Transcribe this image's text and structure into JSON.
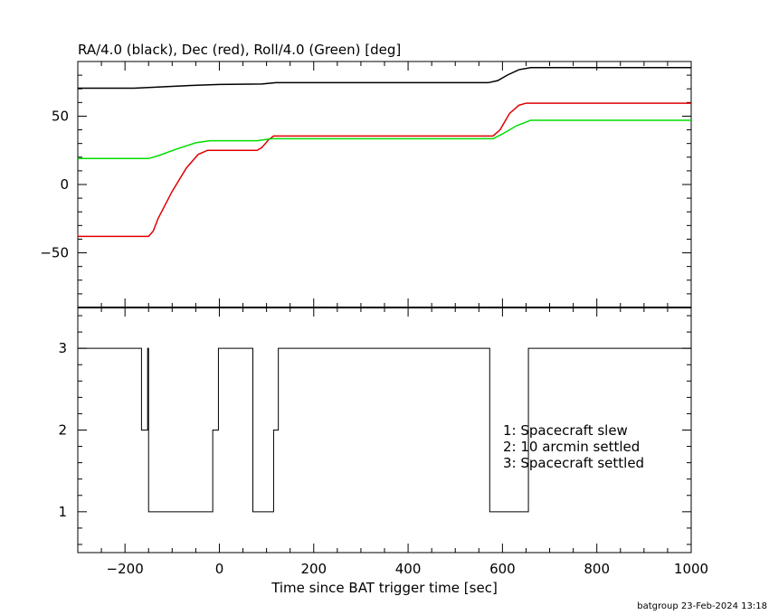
{
  "chart_data": [
    {
      "type": "line",
      "title": "RA/4.0 (black), Dec (red), Roll/4.0 (Green) [deg]",
      "xlim": [
        -300,
        1000
      ],
      "ylim": [
        -90,
        90
      ],
      "yticks": [
        {
          "value": -50,
          "label": "−50"
        },
        {
          "value": 0,
          "label": "0"
        },
        {
          "value": 50,
          "label": "50"
        }
      ],
      "series": [
        {
          "color": "#000000",
          "points": [
            [
              -300,
              70.5
            ],
            [
              -180,
              70.5
            ],
            [
              -120,
              71.5
            ],
            [
              -60,
              72.5
            ],
            [
              0,
              73.2
            ],
            [
              90,
              73.5
            ],
            [
              120,
              74.5
            ],
            [
              570,
              74.5
            ],
            [
              590,
              76
            ],
            [
              610,
              80
            ],
            [
              635,
              84
            ],
            [
              660,
              85.5
            ],
            [
              1000,
              85.5
            ]
          ]
        },
        {
          "color": "#e00000",
          "points": [
            [
              -300,
              -38
            ],
            [
              -150,
              -38
            ],
            [
              -140,
              -34
            ],
            [
              -130,
              -25
            ],
            [
              -100,
              -5
            ],
            [
              -70,
              12
            ],
            [
              -45,
              22
            ],
            [
              -25,
              25
            ],
            [
              80,
              25
            ],
            [
              90,
              27
            ],
            [
              105,
              33
            ],
            [
              115,
              35.5
            ],
            [
              580,
              35.5
            ],
            [
              595,
              40
            ],
            [
              615,
              52
            ],
            [
              635,
              58
            ],
            [
              650,
              59.5
            ],
            [
              1000,
              59.5
            ]
          ]
        },
        {
          "color": "#00dd00",
          "points": [
            [
              -300,
              19
            ],
            [
              -150,
              19
            ],
            [
              -130,
              21
            ],
            [
              -90,
              26
            ],
            [
              -50,
              30.5
            ],
            [
              -20,
              32
            ],
            [
              80,
              32
            ],
            [
              110,
              33.5
            ],
            [
              580,
              33.5
            ],
            [
              600,
              37
            ],
            [
              630,
              43
            ],
            [
              660,
              47
            ],
            [
              1000,
              47
            ]
          ]
        }
      ]
    },
    {
      "type": "line",
      "xlabel": "Time since BAT trigger time [sec]",
      "xlim": [
        -300,
        1000
      ],
      "ylim": [
        0.5,
        3.5
      ],
      "xticks": [
        {
          "value": -200,
          "label": "−200"
        },
        {
          "value": 0,
          "label": "0"
        },
        {
          "value": 200,
          "label": "200"
        },
        {
          "value": 400,
          "label": "400"
        },
        {
          "value": 600,
          "label": "600"
        },
        {
          "value": 800,
          "label": "800"
        },
        {
          "value": 1000,
          "label": "1000"
        }
      ],
      "yticks": [
        {
          "value": 1,
          "label": "1"
        },
        {
          "value": 2,
          "label": "2"
        },
        {
          "value": 3,
          "label": "3"
        }
      ],
      "annotations": [
        "1: Spacecraft slew",
        "2: 10 arcmin settled",
        "3: Spacecraft settled"
      ],
      "series": [
        {
          "color": "#000000",
          "step_points": [
            [
              -300,
              3
            ],
            [
              -165,
              3
            ],
            [
              -165,
              2
            ],
            [
              -152,
              2
            ],
            [
              -152,
              3
            ],
            [
              -150,
              3
            ],
            [
              -150,
              1
            ],
            [
              -14,
              1
            ],
            [
              -14,
              2
            ],
            [
              -2,
              2
            ],
            [
              -2,
              3
            ],
            [
              71,
              3
            ],
            [
              71,
              1
            ],
            [
              115,
              1
            ],
            [
              115,
              2
            ],
            [
              125,
              2
            ],
            [
              125,
              3
            ],
            [
              573,
              3
            ],
            [
              573,
              1
            ],
            [
              655,
              1
            ],
            [
              655,
              3
            ],
            [
              1000,
              3
            ]
          ]
        }
      ]
    }
  ],
  "footer": "batgroup 23-Feb-2024 13:18"
}
